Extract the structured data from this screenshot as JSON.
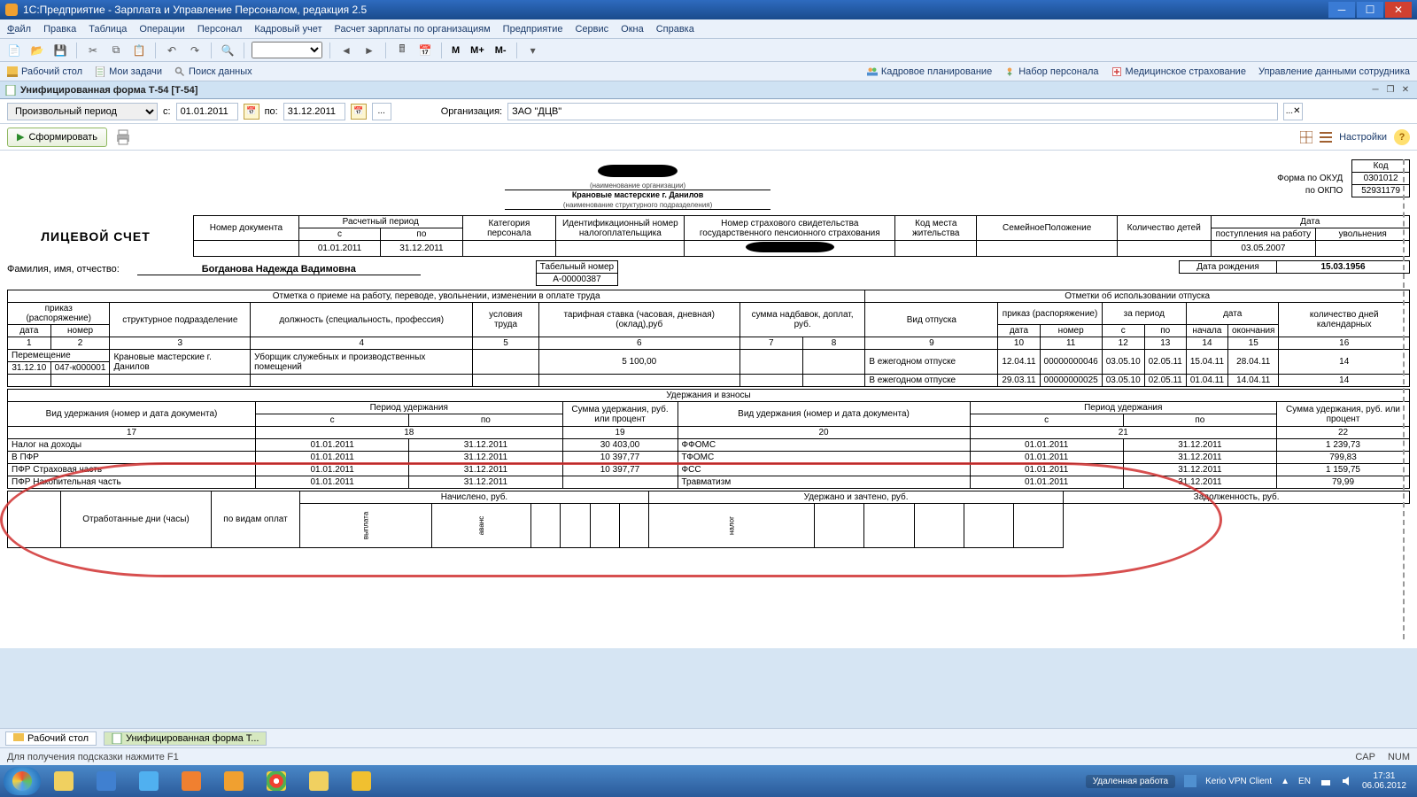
{
  "window": {
    "title": "1С:Предприятие - Зарплата и Управление Персоналом, редакция 2.5"
  },
  "menu": {
    "items": [
      "Файл",
      "Правка",
      "Таблица",
      "Операции",
      "Персонал",
      "Кадровый учет",
      "Расчет зарплаты по организациям",
      "Предприятие",
      "Сервис",
      "Окна",
      "Справка"
    ]
  },
  "linkbar": {
    "left": [
      {
        "label": "Рабочий стол"
      },
      {
        "label": "Мои задачи"
      },
      {
        "label": "Поиск данных"
      }
    ],
    "right": [
      {
        "label": "Кадровое планирование"
      },
      {
        "label": "Набор персонала"
      },
      {
        "label": "Медицинское страхование"
      },
      {
        "label": "Управление данными сотрудника"
      }
    ]
  },
  "doctab": {
    "title": "Унифицированная форма Т-54 [Т-54]"
  },
  "filter": {
    "period_label": "Произвольный период",
    "from_lbl": "с:",
    "from": "01.01.2011",
    "to_lbl": "по:",
    "to": "31.12.2011",
    "org_lbl": "Организация:",
    "org": "ЗАО \"ДЦВ\""
  },
  "action": {
    "form": "Сформировать",
    "settings": "Настройки"
  },
  "report": {
    "okud_lbl": "Форма по ОКУД",
    "okud": "0301012",
    "okpo_lbl": "по ОКПО",
    "okpo": "52931179",
    "kod": "Код",
    "org_hint": "(наименование организации)",
    "dept": "Крановые мастерские г. Данилов",
    "dept_hint": "(наименование структурного подразделения)",
    "title": "ЛИЦЕВОЙ СЧЕТ",
    "hdr": {
      "docnum": "Номер документа",
      "period": "Расчетный период",
      "s": "с",
      "po": "по",
      "from": "01.01.2011",
      "to": "31.12.2011",
      "cat": "Категория персонала",
      "inn": "Идентификационный номер налогоплательщика",
      "snils": "Номер страхового свидетельства государственного пенсионного страхования",
      "place": "Код места жительства",
      "family": "СемейноеПоложение",
      "children": "Количество детей",
      "date": "Дата",
      "hire": "поступления на работу",
      "fire": "увольнения",
      "hire_date": "03.05.2007"
    },
    "fio_lbl": "Фамилия, имя, отчество:",
    "fio": "Богданова Надежда Вадимовна",
    "tabnum_lbl": "Табельный номер",
    "tabnum": "А-00000387",
    "bdate_lbl": "Дата рождения",
    "bdate": "15.03.1956",
    "blk1": "Отметка о приеме на работу, переводе, увольнении, изменении в оплате труда",
    "blk2": "Отметки об использовании отпуска",
    "c": {
      "prikaz": "приказ (распоряжение)",
      "date": "дата",
      "num": "номер",
      "dept": "структурное подразделение",
      "job": "должность (специальность, профессия)",
      "cond": "условия труда",
      "rate": "тарифная ставка (часовая, дневная) (оклад),руб",
      "add": "сумма надбавок, доплат, руб.",
      "vtype": "Вид отпуска",
      "zper": "за период",
      "vdate": "дата",
      "start": "начала",
      "end": "окончания",
      "days": "количество дней календарных"
    },
    "nums": [
      "1",
      "2",
      "3",
      "4",
      "5",
      "6",
      "7",
      "8",
      "9",
      "10",
      "11",
      "12",
      "13",
      "14",
      "15",
      "16"
    ],
    "row1": {
      "op": "Перемещение",
      "date": "31.12.10",
      "num": "047-к000001",
      "dept": "Крановые мастерские г. Данилов",
      "job": "Уборщик служебных и производственных помещений",
      "rate": "5 100,00",
      "vtype": "В ежегодном отпуске",
      "pdate": "12.04.11",
      "pnum": "00000000046",
      "ps": "03.05.10",
      "pe": "02.05.11",
      "vs": "15.04.11",
      "ve": "28.04.11",
      "days": "14"
    },
    "row2": {
      "vtype": "В ежегодном отпуске",
      "pdate": "29.03.11",
      "pnum": "00000000025",
      "ps": "03.05.10",
      "pe": "02.05.11",
      "vs": "01.04.11",
      "ve": "14.04.11",
      "days": "14"
    },
    "ded": {
      "title": "Удержания и взносы",
      "type": "Вид удержания (номер и дата документа)",
      "period": "Период удержания",
      "s": "с",
      "po": "по",
      "sum": "Сумма удержания, руб. или процент",
      "nums": [
        "17",
        "18",
        "19",
        "20",
        "21",
        "22"
      ],
      "rows": [
        {
          "t": "Налог на доходы",
          "s": "01.01.2011",
          "e": "31.12.2011",
          "sum": "30 403,00",
          "t2": "ФФОМС",
          "s2": "01.01.2011",
          "e2": "31.12.2011",
          "sum2": "1 239,73"
        },
        {
          "t": "В ПФР",
          "s": "01.01.2011",
          "e": "31.12.2011",
          "sum": "10 397,77",
          "t2": "ТФОМС",
          "s2": "01.01.2011",
          "e2": "31.12.2011",
          "sum2": "799,83"
        },
        {
          "t": "ПФР Страховая часть",
          "s": "01.01.2011",
          "e": "31.12.2011",
          "sum": "10 397,77",
          "t2": "ФСС",
          "s2": "01.01.2011",
          "e2": "31.12.2011",
          "sum2": "1 159,75"
        },
        {
          "t": "ПФР Накопительная часть",
          "s": "01.01.2011",
          "e": "31.12.2011",
          "sum": "",
          "t2": "Травматизм",
          "s2": "01.01.2011",
          "e2": "31.12.2011",
          "sum2": "79,99"
        }
      ]
    },
    "ftr": {
      "charged": "Начислено, руб.",
      "withheld": "Удержано и зачтено, руб.",
      "debt": "Задолженность, руб.",
      "worked": "Отработанные дни (часы)",
      "byp": "по видам оплат"
    }
  },
  "bottomTabs": [
    {
      "label": "Рабочий стол"
    },
    {
      "label": "Унифицированная форма Т..."
    }
  ],
  "status": {
    "hint": "Для получения подсказки нажмите F1",
    "cap": "CAP",
    "num": "NUM"
  },
  "taskbar": {
    "remote": "Удаленная работа",
    "vpn": "Kerio VPN Client",
    "lang": "EN",
    "time": "17:31",
    "date": "06.06.2012"
  }
}
